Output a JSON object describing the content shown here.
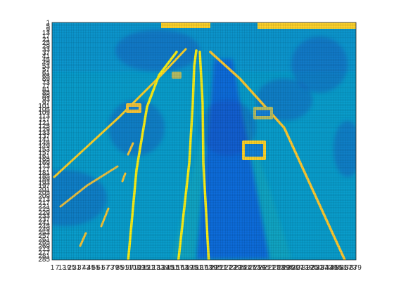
{
  "chart_data": {
    "type": "heatmap",
    "colormap": "parula",
    "colormap_stops": [
      "#352a87",
      "#0f5cdd",
      "#1481d6",
      "#06a4ca",
      "#2eb7a4",
      "#87bf77",
      "#d1bb59",
      "#fec832",
      "#f9fb0e"
    ],
    "grid": true,
    "grid_color": "#000000",
    "x": {
      "first": 1,
      "last": 379,
      "step": 1,
      "label_every": 6
    },
    "y": {
      "first": 1,
      "last": 285,
      "step": 1,
      "label_every": 4,
      "direction": "reverse"
    },
    "scene": {
      "background_value": 0.35,
      "sky_value": 0.32,
      "median_value": 0.18,
      "lane_line_value": 0.92,
      "vehicle_value": 0.85,
      "dark_patch_value": 0.08
    }
  }
}
